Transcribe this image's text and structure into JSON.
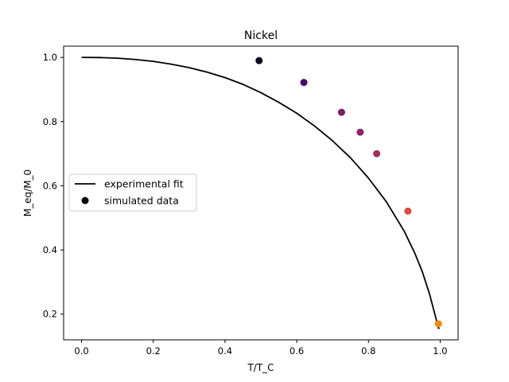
{
  "chart_data": {
    "type": "line+scatter",
    "title": "Nickel",
    "xlabel": "T/T_C",
    "ylabel": "M_eq/M_0",
    "xlim": [
      -0.05,
      1.05
    ],
    "ylim": [
      0.12,
      1.035
    ],
    "xticks": [
      0.0,
      0.2,
      0.4,
      0.6,
      0.8,
      1.0
    ],
    "xtick_labels": [
      "0.0",
      "0.2",
      "0.4",
      "0.6",
      "0.8",
      "1.0"
    ],
    "yticks": [
      0.2,
      0.4,
      0.6,
      0.8,
      1.0
    ],
    "ytick_labels": [
      "0.2",
      "0.4",
      "0.6",
      "0.8",
      "1.0"
    ],
    "grid": false,
    "legend_position": "center-left",
    "series": [
      {
        "name": "experimental fit",
        "kind": "line",
        "color": "#000000",
        "x": [
          0.0,
          0.05,
          0.1,
          0.15,
          0.2,
          0.25,
          0.3,
          0.35,
          0.4,
          0.45,
          0.5,
          0.55,
          0.6,
          0.65,
          0.7,
          0.75,
          0.8,
          0.85,
          0.9,
          0.93,
          0.95,
          0.97,
          0.98,
          0.99,
          0.995,
          0.998
        ],
        "y": [
          1.0,
          0.9995,
          0.9975,
          0.9935,
          0.9875,
          0.979,
          0.968,
          0.954,
          0.937,
          0.916,
          0.89,
          0.86,
          0.826,
          0.786,
          0.74,
          0.687,
          0.624,
          0.55,
          0.458,
          0.388,
          0.333,
          0.264,
          0.222,
          0.179,
          0.157,
          0.155
        ]
      },
      {
        "name": "simulated data",
        "kind": "scatter",
        "legend_color": "#000000",
        "x": [
          0.495,
          0.62,
          0.725,
          0.777,
          0.823,
          0.91,
          0.995
        ],
        "y": [
          0.99,
          0.922,
          0.829,
          0.767,
          0.7,
          0.521,
          0.17
        ],
        "colors": [
          "#0d0829",
          "#4a0c6b",
          "#781c6d",
          "#8f226b",
          "#a52c60",
          "#dc4a3b",
          "#f08a0b"
        ]
      }
    ]
  }
}
